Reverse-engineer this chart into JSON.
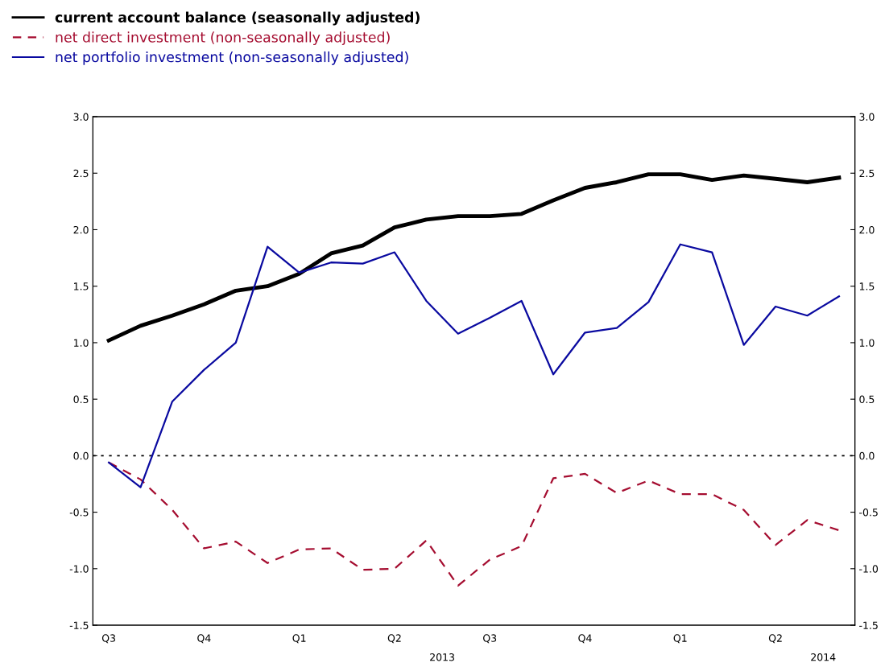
{
  "chart_data": {
    "type": "line",
    "categories": [
      "Q3",
      null,
      null,
      "Q4",
      null,
      null,
      "Q1",
      null,
      null,
      "Q2",
      null,
      null,
      "Q3",
      null,
      null,
      "Q4",
      null,
      null,
      "Q1",
      null,
      null,
      "Q2",
      null,
      null
    ],
    "annotations": [
      "2013",
      "2014"
    ],
    "series": [
      {
        "name": "current account balance (seasonally adjusted)",
        "color": "#000000",
        "line_style": "solid",
        "values": [
          1.02,
          1.15,
          1.24,
          1.34,
          1.46,
          1.5,
          1.61,
          1.79,
          1.86,
          2.02,
          2.09,
          2.12,
          2.12,
          2.14,
          2.26,
          2.37,
          2.42,
          2.49,
          2.49,
          2.44,
          2.48,
          2.45,
          2.42,
          2.46
        ]
      },
      {
        "name": "net direct investment (non-seasonally adjusted)",
        "color": "#a50d30",
        "line_style": "dashed",
        "values": [
          -0.06,
          -0.21,
          -0.48,
          -0.82,
          -0.76,
          -0.95,
          -0.83,
          -0.82,
          -1.01,
          -1.0,
          -0.75,
          -1.15,
          -0.92,
          -0.8,
          -0.2,
          -0.16,
          -0.33,
          -0.22,
          -0.34,
          -0.34,
          -0.48,
          -0.79,
          -0.57,
          -0.66
        ]
      },
      {
        "name": "net portfolio investment (non-seasonally adjusted)",
        "color": "#0a0aa0",
        "line_style": "solid",
        "values": [
          -0.06,
          -0.28,
          0.48,
          0.76,
          1.0,
          1.85,
          1.62,
          1.71,
          1.7,
          1.8,
          1.37,
          1.08,
          1.22,
          1.37,
          0.72,
          1.09,
          1.13,
          1.36,
          1.87,
          1.8,
          0.98,
          1.32,
          1.24,
          1.41
        ]
      }
    ],
    "ylim": [
      -1.5,
      3.0
    ],
    "yticks": [
      {
        "value": -1.5,
        "label": "-1.5"
      },
      {
        "value": -1.0,
        "label": "-1.0"
      },
      {
        "value": -0.5,
        "label": "-0.5"
      },
      {
        "value": 0.0,
        "label": "0.0"
      },
      {
        "value": 0.5,
        "label": "0.5"
      },
      {
        "value": 1.0,
        "label": "1.0"
      },
      {
        "value": 1.5,
        "label": "1.5"
      },
      {
        "value": 2.0,
        "label": "2.0"
      },
      {
        "value": 2.5,
        "label": "2.5"
      },
      {
        "value": 3.0,
        "label": "3.0"
      }
    ],
    "y2lim": [
      -1.5,
      3.0
    ],
    "y2ticks": [
      {
        "value": -1.5,
        "label": "-1.5"
      },
      {
        "value": -1.0,
        "label": "-1.0"
      },
      {
        "value": -0.5,
        "label": "-0.5"
      },
      {
        "value": 0.0,
        "label": "0.0"
      },
      {
        "value": 0.5,
        "label": "0.5"
      },
      {
        "value": 1.0,
        "label": "1.0"
      },
      {
        "value": 1.5,
        "label": "1.5"
      },
      {
        "value": 2.0,
        "label": "2.0"
      },
      {
        "value": 2.5,
        "label": "2.5"
      },
      {
        "value": 3.0,
        "label": "3.0"
      }
    ],
    "ref_lines": [
      {
        "axis": "y",
        "value": 0.0,
        "color": "#000000",
        "line_style": "dotted"
      }
    ],
    "grid": false,
    "legend": "top left",
    "marker": "none"
  }
}
